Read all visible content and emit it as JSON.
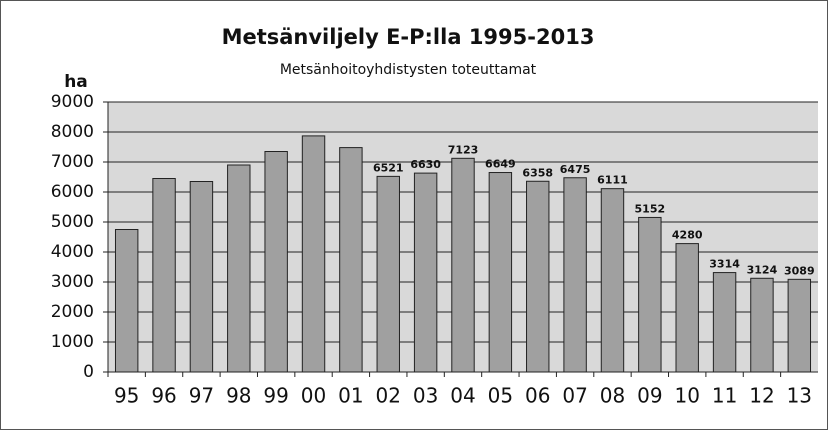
{
  "chart_data": {
    "type": "bar",
    "title": "Metsänviljely E-P:lla 1995-2013",
    "subtitle": "Metsänhoitoyhdistysten toteuttamat",
    "y_label": "ha",
    "categories": [
      "95",
      "96",
      "97",
      "98",
      "99",
      "00",
      "01",
      "02",
      "03",
      "04",
      "05",
      "06",
      "07",
      "08",
      "09",
      "10",
      "11",
      "12",
      "13"
    ],
    "values": [
      4750,
      6450,
      6350,
      6900,
      7350,
      7870,
      7480,
      6521,
      6630,
      7123,
      6649,
      6358,
      6475,
      6111,
      5152,
      4280,
      3314,
      3124,
      3089
    ],
    "value_labels": [
      null,
      null,
      null,
      null,
      null,
      null,
      null,
      "6521",
      "6630",
      "7123",
      "6649",
      "6358",
      "6475",
      "6111",
      "5152",
      "4280",
      "3314",
      "3124",
      "3089"
    ],
    "color": "#a0a0a0",
    "ylim": [
      0,
      9000
    ],
    "yticks": [
      0,
      1000,
      2000,
      3000,
      4000,
      5000,
      6000,
      7000,
      8000,
      9000
    ],
    "grid": true
  }
}
